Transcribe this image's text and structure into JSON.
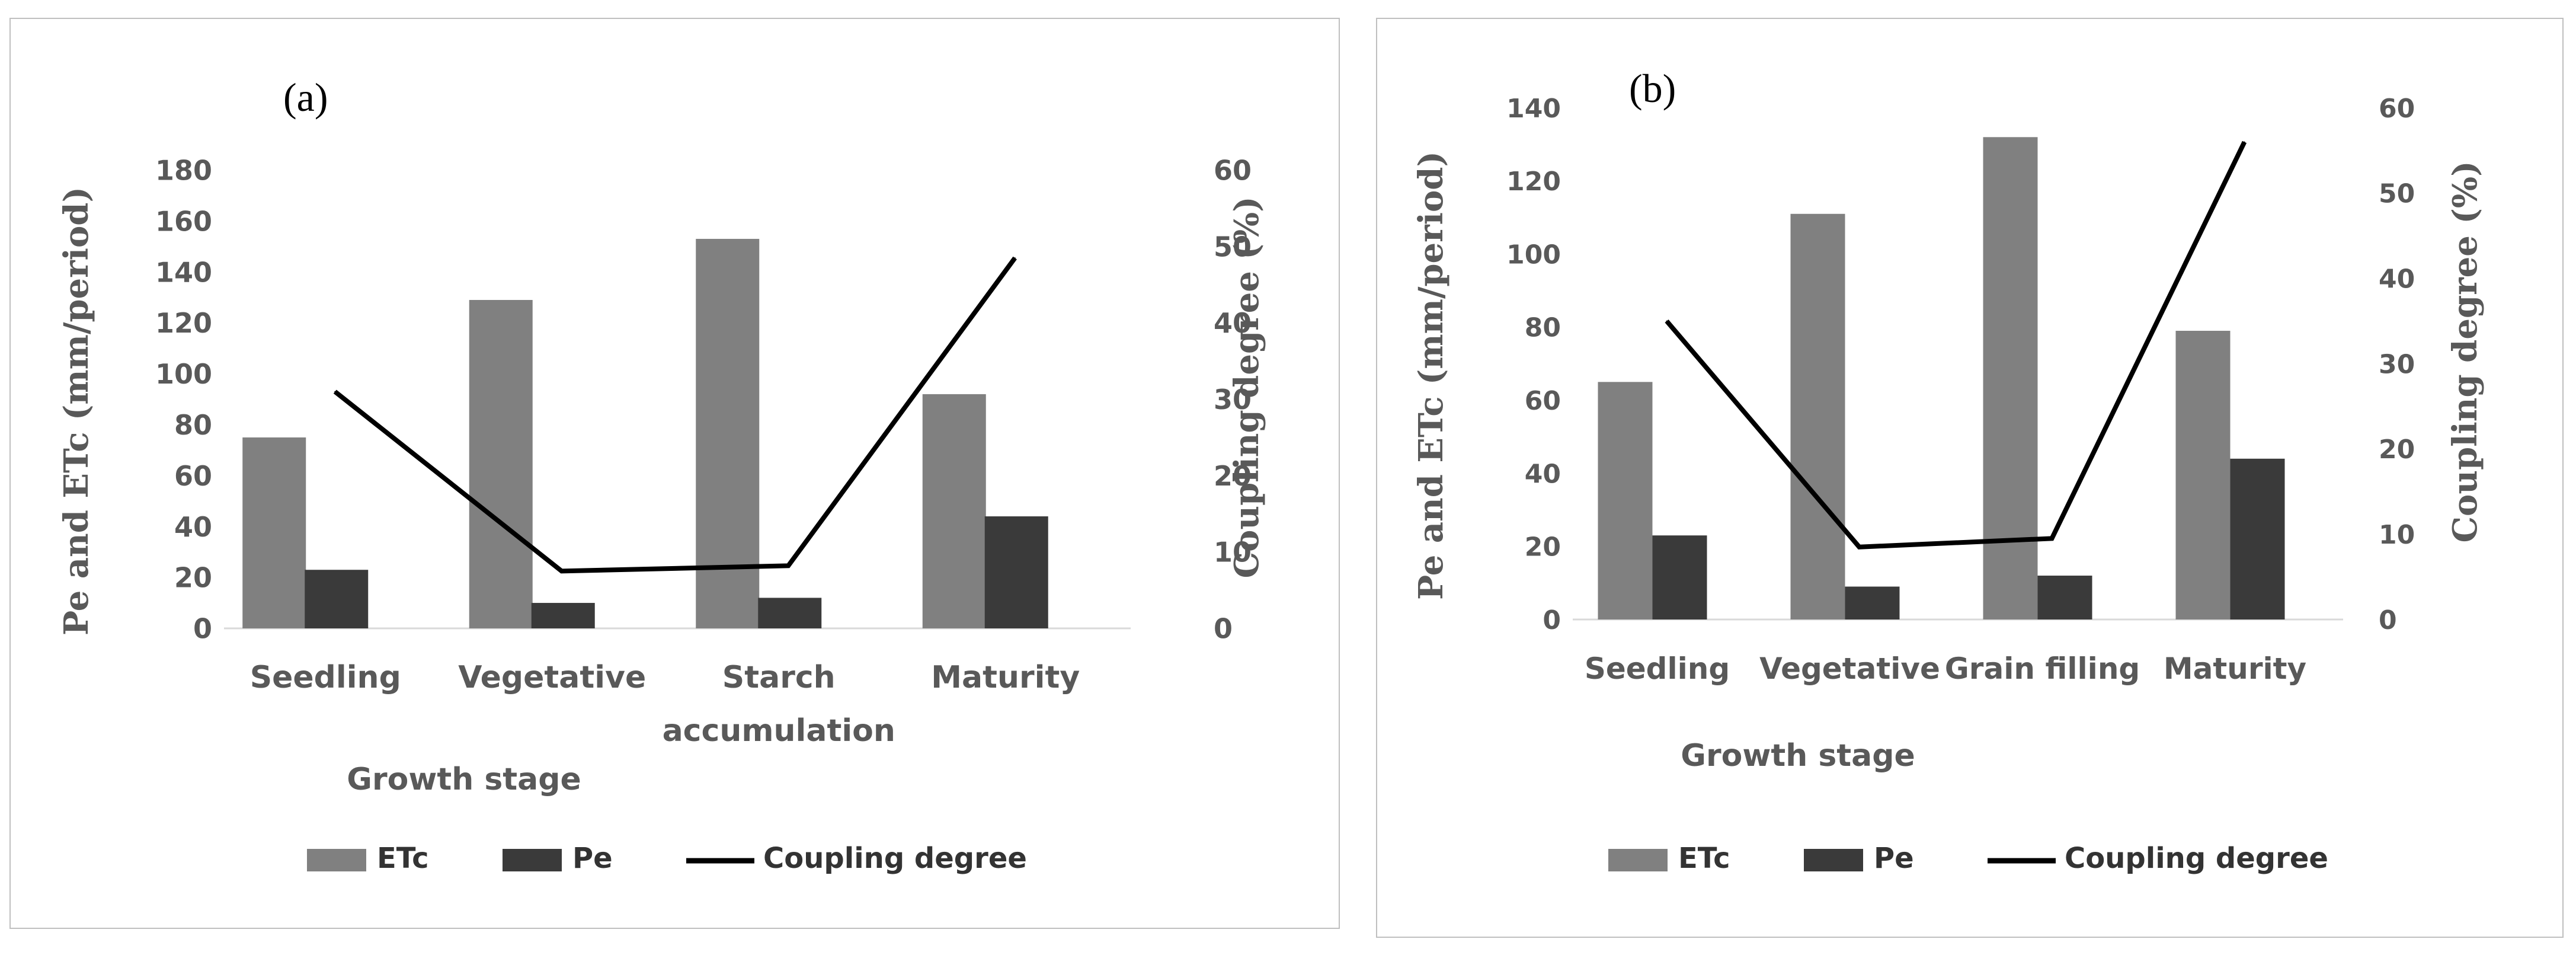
{
  "colors": {
    "etc": "#808080",
    "pe": "#3a3a3a",
    "line": "#000000",
    "text": "#595959",
    "border": "#bfbfbf"
  },
  "chart_data": [
    {
      "type": "bar",
      "panel_label": "(a)",
      "categories": [
        "Seedling",
        "Vegetative",
        "Starch accumulation",
        "Maturity"
      ],
      "series": [
        {
          "name": "ETc",
          "axis": "left",
          "kind": "bar",
          "values": [
            75,
            129,
            153,
            92
          ]
        },
        {
          "name": "Pe",
          "axis": "left",
          "kind": "bar",
          "values": [
            23,
            10,
            12,
            44
          ]
        },
        {
          "name": "Coupling degree",
          "axis": "right",
          "kind": "line",
          "values": [
            31,
            7.5,
            8.2,
            48.5
          ]
        }
      ],
      "ylim_left": [
        0,
        180
      ],
      "yticks_left": [
        0,
        20,
        40,
        60,
        80,
        100,
        120,
        140,
        160,
        180
      ],
      "ylim_right": [
        0,
        60
      ],
      "yticks_right": [
        0,
        10,
        20,
        30,
        40,
        50,
        60
      ],
      "ylabel_left": "Pe and ETc (mm/period)",
      "ylabel_right": "Coupling degree (%)",
      "xlabel": "Growth stage",
      "legend": "bottom",
      "grid": false
    },
    {
      "type": "bar",
      "panel_label": "(b)",
      "categories": [
        "Seedling",
        "Vegetative",
        "Grain filling",
        "Maturity"
      ],
      "series": [
        {
          "name": "ETc",
          "axis": "left",
          "kind": "bar",
          "values": [
            65,
            111,
            132,
            79
          ]
        },
        {
          "name": "Pe",
          "axis": "left",
          "kind": "bar",
          "values": [
            23,
            9,
            12,
            44
          ]
        },
        {
          "name": "Coupling degree",
          "axis": "right",
          "kind": "line",
          "values": [
            35,
            8.5,
            9.5,
            56
          ]
        }
      ],
      "ylim_left": [
        0,
        140
      ],
      "yticks_left": [
        0,
        20,
        40,
        60,
        80,
        100,
        120,
        140
      ],
      "ylim_right": [
        0,
        60
      ],
      "yticks_right": [
        0,
        10,
        20,
        30,
        40,
        50,
        60
      ],
      "ylabel_left": "Pe and ETc (mm/period)",
      "ylabel_right": "Coupling degree (%)",
      "xlabel": "Growth stage",
      "legend": "bottom",
      "grid": false
    }
  ]
}
